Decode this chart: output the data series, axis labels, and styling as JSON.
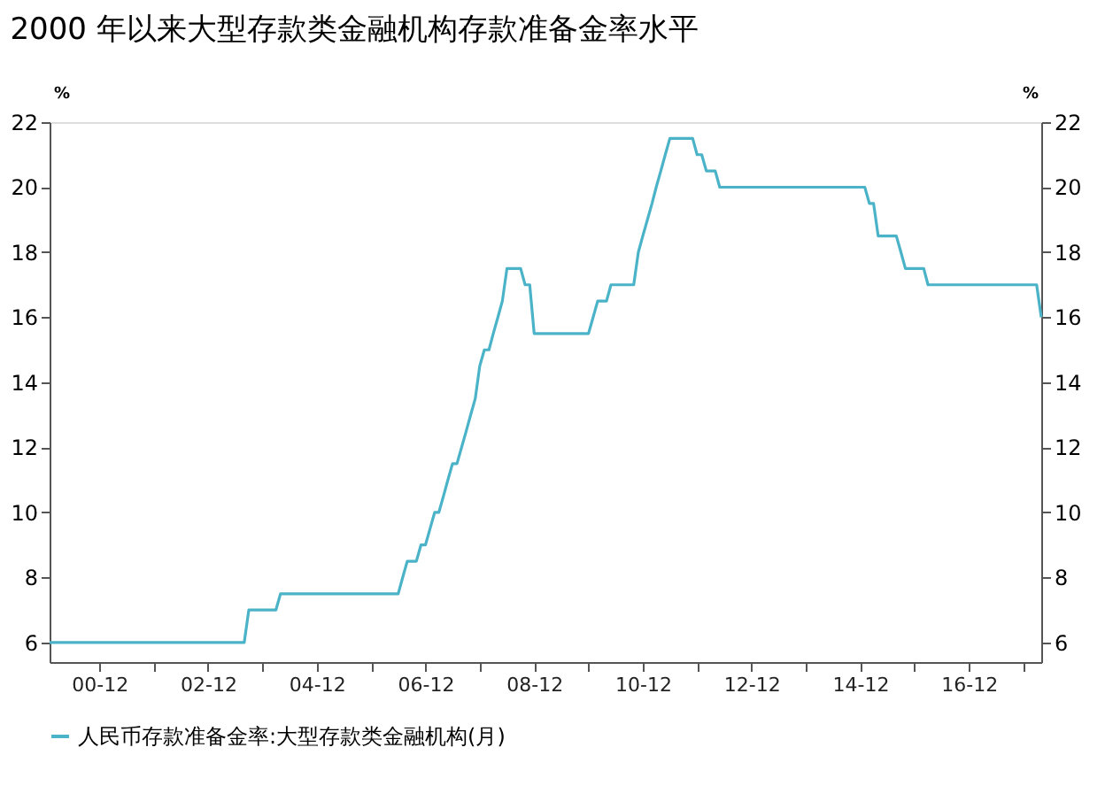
{
  "chart_data": {
    "type": "line",
    "title": "2000 年以来大型存款类金融机构存款准备金率水平",
    "ylabel": "%",
    "y2label": "%",
    "x": [
      "2000-01",
      "2003-08",
      "2003-09",
      "2004-03",
      "2004-04",
      "2006-06",
      "2006-07",
      "2006-08",
      "2006-10",
      "2006-11",
      "2006-12",
      "2007-01",
      "2007-02",
      "2007-03",
      "2007-04",
      "2007-05",
      "2007-06",
      "2007-07",
      "2007-08",
      "2007-09",
      "2007-10",
      "2007-11",
      "2007-12",
      "2008-01",
      "2008-02",
      "2008-03",
      "2008-04",
      "2008-05",
      "2008-06",
      "2008-09",
      "2008-10",
      "2008-11",
      "2008-12",
      "2009-12",
      "2010-01",
      "2010-02",
      "2010-04",
      "2010-05",
      "2010-10",
      "2010-11",
      "2010-12",
      "2011-01",
      "2011-02",
      "2011-03",
      "2011-04",
      "2011-05",
      "2011-06",
      "2011-11",
      "2011-12",
      "2012-01",
      "2012-02",
      "2012-04",
      "2012-05",
      "2015-01",
      "2015-02",
      "2015-03",
      "2015-04",
      "2015-08",
      "2015-09",
      "2015-10",
      "2016-02",
      "2016-03",
      "2018-03",
      "2018-04"
    ],
    "series": [
      {
        "name": "人民币存款准备金率:大型存款类金融机构(月)",
        "color": "#4bb3c8",
        "values": [
          6,
          6,
          7,
          7,
          7.5,
          7.5,
          8,
          8.5,
          8.5,
          9,
          9,
          9.5,
          10,
          10,
          10.5,
          11,
          11.5,
          11.5,
          12,
          12.5,
          13,
          13.5,
          14.5,
          15,
          15,
          15.5,
          16,
          16.5,
          17.5,
          17.5,
          17,
          17,
          15.5,
          15.5,
          16,
          16.5,
          16.5,
          17,
          17,
          18,
          18.5,
          19,
          19.5,
          20,
          20.5,
          21,
          21.5,
          21.5,
          21,
          21,
          20.5,
          20.5,
          20,
          20,
          19.5,
          19.5,
          18.5,
          18.5,
          18,
          17.5,
          17.5,
          17,
          17,
          16
        ]
      }
    ],
    "xlim": [
      "2000-01",
      "2018-04"
    ],
    "xticks": [
      {
        "value": "2000-12",
        "label": "00-12"
      },
      {
        "value": "2001-12",
        "label": null
      },
      {
        "value": "2002-12",
        "label": "02-12"
      },
      {
        "value": "2003-12",
        "label": null
      },
      {
        "value": "2004-12",
        "label": "04-12"
      },
      {
        "value": "2005-12",
        "label": null
      },
      {
        "value": "2006-12",
        "label": "06-12"
      },
      {
        "value": "2007-12",
        "label": null
      },
      {
        "value": "2008-12",
        "label": "08-12"
      },
      {
        "value": "2009-12",
        "label": null
      },
      {
        "value": "2010-12",
        "label": "10-12"
      },
      {
        "value": "2011-12",
        "label": null
      },
      {
        "value": "2012-12",
        "label": "12-12"
      },
      {
        "value": "2013-12",
        "label": null
      },
      {
        "value": "2014-12",
        "label": "14-12"
      },
      {
        "value": "2015-12",
        "label": null
      },
      {
        "value": "2016-12",
        "label": "16-12"
      },
      {
        "value": "2017-12",
        "label": null
      }
    ],
    "ylim": [
      5.4,
      22
    ],
    "yticks": [
      6,
      8,
      10,
      12,
      14,
      16,
      18,
      20,
      22
    ],
    "y2lim": [
      5.4,
      22
    ],
    "y2ticks": [
      6,
      8,
      10,
      12,
      14,
      16,
      18,
      20,
      22
    ],
    "grid": false,
    "legend": "bottom",
    "marker": "none",
    "line_style": "solid"
  }
}
